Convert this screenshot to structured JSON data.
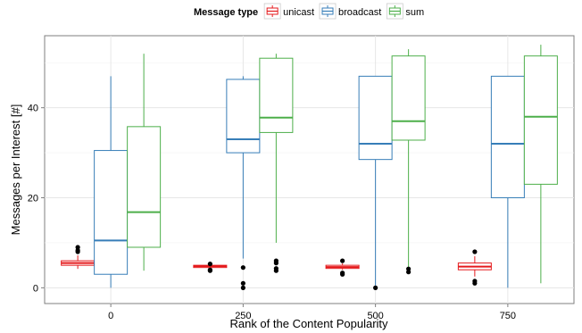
{
  "chart_data": {
    "type": "boxplot",
    "title": "",
    "xlabel": "Rank of the Content Popularity",
    "ylabel": "Messages per Interest [#]",
    "categories": [
      "0",
      "250",
      "500",
      "750"
    ],
    "ylim": [
      -3.5,
      56
    ],
    "yticks": [
      0,
      20,
      40
    ],
    "grid": true,
    "legend": {
      "title": "Message type",
      "position": "top",
      "entries": [
        "unicast",
        "broadcast",
        "sum"
      ]
    },
    "series": [
      {
        "name": "unicast",
        "color": "#e41a1c",
        "boxes": [
          {
            "min": 4.2,
            "q1": 5.0,
            "median": 5.5,
            "q3": 6.0,
            "max": 7.2,
            "outliers": [
              8.0,
              8.3,
              9.0
            ]
          },
          {
            "min": 4.2,
            "q1": 4.5,
            "median": 4.8,
            "q3": 5.0,
            "max": 5.2,
            "outliers": [
              3.8,
              4.0,
              5.3
            ]
          },
          {
            "min": 4.0,
            "q1": 4.3,
            "median": 4.6,
            "q3": 5.0,
            "max": 5.4,
            "outliers": [
              3.0,
              3.3,
              6.0
            ]
          },
          {
            "min": 2.5,
            "q1": 4.0,
            "median": 4.7,
            "q3": 5.5,
            "max": 7.0,
            "outliers": [
              1.0,
              1.5,
              8.0
            ]
          }
        ]
      },
      {
        "name": "broadcast",
        "color": "#377eb8",
        "boxes": [
          {
            "min": 0,
            "q1": 3.0,
            "median": 10.5,
            "q3": 30.5,
            "max": 47.0,
            "outliers": []
          },
          {
            "min": 6.5,
            "q1": 30.0,
            "median": 33.0,
            "q3": 46.3,
            "max": 47.0,
            "outliers": [
              0.0,
              1.0,
              4.5
            ]
          },
          {
            "min": 0.5,
            "q1": 28.5,
            "median": 32.0,
            "q3": 47.0,
            "max": 47.0,
            "outliers": [
              0.0
            ]
          },
          {
            "min": 0,
            "q1": 20.0,
            "median": 32.0,
            "q3": 47.0,
            "max": 47.0,
            "outliers": []
          }
        ]
      },
      {
        "name": "sum",
        "color": "#4daf4a",
        "boxes": [
          {
            "min": 3.8,
            "q1": 9.0,
            "median": 16.8,
            "q3": 35.8,
            "max": 52.0,
            "outliers": []
          },
          {
            "min": 10.0,
            "q1": 34.5,
            "median": 37.8,
            "q3": 51.0,
            "max": 52.0,
            "outliers": [
              3.8,
              4.3,
              5.5,
              6.0
            ]
          },
          {
            "min": 4.5,
            "q1": 32.8,
            "median": 37.0,
            "q3": 51.5,
            "max": 53.0,
            "outliers": [
              3.5,
              4.2
            ]
          },
          {
            "min": 1.0,
            "q1": 23.0,
            "median": 38.0,
            "q3": 51.5,
            "max": 54.0,
            "outliers": []
          }
        ]
      }
    ]
  }
}
